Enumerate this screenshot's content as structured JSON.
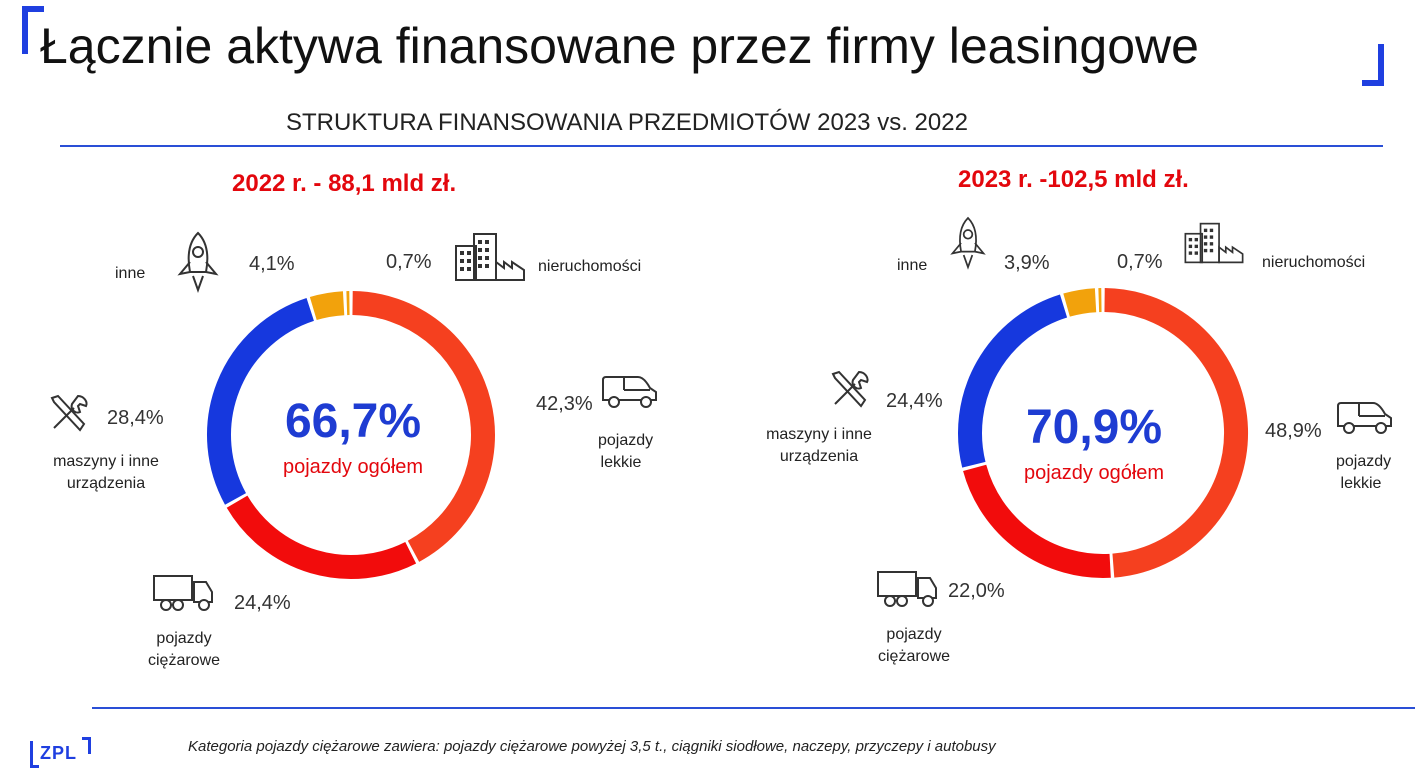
{
  "header": {
    "title": "Łącznie aktywa finansowane przez firmy leasingowe",
    "subtitle": "STRUKTURA FINANSOWANIA PRZEDMIOTÓW 2023 vs. 2022"
  },
  "colors": {
    "pojazdy_lekkie": "#f5401f",
    "pojazdy_ciezarowe": "#f20c0c",
    "maszyny": "#1638de",
    "inne": "#f2a20c",
    "nieruchomosci": "#f2a20c",
    "accent": "#1f3fe0"
  },
  "chart_data": [
    {
      "type": "pie",
      "title": "2022 r. - 88,1 mld zł.",
      "categories": [
        "pojazdy lekkie",
        "pojazdy ciężarowe",
        "maszyny i inne urządzenia",
        "inne",
        "nieruchomości"
      ],
      "values": [
        42.3,
        24.4,
        28.4,
        4.1,
        0.7
      ],
      "labels": [
        "42,3%",
        "24,4%",
        "28,4%",
        "4,1%",
        "0,7%"
      ],
      "center_value": "66,7%",
      "center_label": "pojazdy ogółem"
    },
    {
      "type": "pie",
      "title": "2023 r. -102,5 mld zł.",
      "categories": [
        "pojazdy lekkie",
        "pojazdy ciężarowe",
        "maszyny i inne urządzenia",
        "inne",
        "nieruchomości"
      ],
      "values": [
        48.9,
        22.0,
        24.4,
        3.9,
        0.7
      ],
      "labels": [
        "48,9%",
        "22,0%",
        "24,4%",
        "3,9%",
        "0,7%"
      ],
      "center_value": "70,9%",
      "center_label": "pojazdy ogółem"
    }
  ],
  "legend_labels": {
    "inne": "inne",
    "nieruchomosci": "nieruchomości",
    "maszyny_line1": "maszyny i inne",
    "maszyny_line2": "urządzenia",
    "lekkie_line1": "pojazdy",
    "lekkie_line2": "lekkie",
    "ciezarowe_line1": "pojazdy",
    "ciezarowe_line2": "ciężarowe"
  },
  "icons": [
    "rocket-icon",
    "building-icon",
    "tools-icon",
    "car-icon",
    "truck-icon"
  ],
  "footer": {
    "note": "Kategoria pojazdy ciężarowe zawiera: pojazdy ciężarowe powyżej 3,5 t., ciągniki siodłowe, naczepy, przyczepy i autobusy",
    "logo": "ZPL"
  }
}
